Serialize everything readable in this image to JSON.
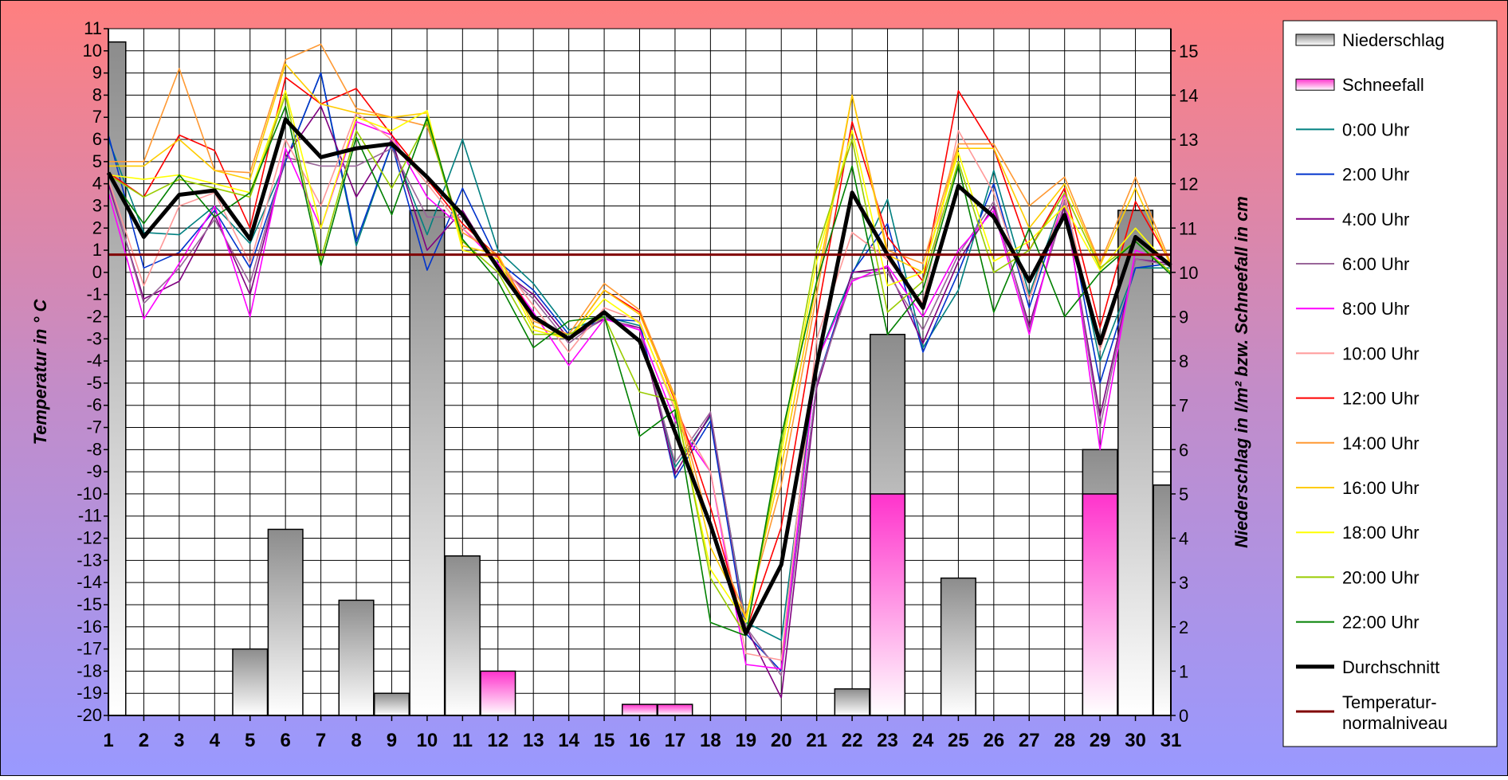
{
  "chart_data": {
    "type": "line",
    "x": [
      1,
      2,
      3,
      4,
      5,
      6,
      7,
      8,
      9,
      10,
      11,
      12,
      13,
      14,
      15,
      16,
      17,
      18,
      19,
      20,
      21,
      22,
      23,
      24,
      25,
      26,
      27,
      28,
      29,
      30,
      31
    ],
    "x_tick_labels": [
      "1",
      "2",
      "3",
      "4",
      "5",
      "6",
      "7",
      "8",
      "9",
      "10",
      "11",
      "12",
      "13",
      "14",
      "15",
      "16",
      "17",
      "18",
      "19",
      "20",
      "21",
      "22",
      "23",
      "24",
      "25",
      "26",
      "27",
      "28",
      "29",
      "30",
      "31"
    ],
    "ylabel": "Temperatur in ° C",
    "ylim": [
      -20,
      11
    ],
    "y_ticks": [
      11,
      10,
      9,
      8,
      7,
      6,
      5,
      4,
      3,
      2,
      1,
      0,
      -1,
      -2,
      -3,
      -4,
      -5,
      -6,
      -7,
      -8,
      -9,
      -10,
      -11,
      -12,
      -13,
      -14,
      -15,
      -16,
      -17,
      -18,
      -19,
      -20
    ],
    "y2label": "Niederschlag in l/m² bzw. Schneefall in cm",
    "y2lim": [
      0,
      15.5
    ],
    "y2_ticks": [
      15,
      14,
      13,
      12,
      11,
      10,
      9,
      8,
      7,
      6,
      5,
      4,
      3,
      2,
      1,
      0
    ],
    "grid": true,
    "legend_position": "right",
    "precipitation": {
      "name": "Niederschlag",
      "color": "#999999",
      "values": [
        15.2,
        0,
        0,
        0,
        1.5,
        4.2,
        0,
        2.6,
        0.5,
        11.4,
        3.6,
        0,
        0,
        0,
        0,
        0,
        0,
        0,
        0,
        0,
        0,
        0.6,
        8.6,
        0,
        3.1,
        0,
        0,
        0,
        6,
        11.4,
        5.2
      ]
    },
    "snowfall": {
      "name": "Schneefall",
      "color": "#ff33cc",
      "values": [
        0,
        0,
        0,
        0,
        0,
        0,
        0,
        0,
        0,
        0,
        0,
        1,
        0,
        0,
        0,
        0.25,
        0.25,
        0,
        0,
        0,
        0,
        0,
        5,
        0,
        0,
        0,
        0,
        0,
        5,
        0,
        0
      ]
    },
    "series": [
      {
        "name": "0:00 Uhr",
        "color": "#008080",
        "values": [
          6.0,
          1.8,
          1.7,
          3.0,
          1.3,
          5.0,
          9.0,
          1.2,
          5.8,
          1.7,
          6.0,
          1.0,
          -0.5,
          -2.6,
          -2.0,
          -2.4,
          -8.8,
          -6.5,
          -15.8,
          -16.6,
          -4.0,
          -0.1,
          3.3,
          -3.4,
          -0.8,
          4.6,
          -1.0,
          3.5,
          -4.0,
          0.2,
          0.2
        ]
      },
      {
        "name": "2:00 Uhr",
        "color": "#0033cc",
        "values": [
          6.2,
          0.2,
          0.9,
          2.8,
          0.2,
          5.0,
          9.0,
          1.4,
          5.8,
          0.1,
          3.8,
          0.5,
          -0.8,
          -2.8,
          -2.1,
          -2.2,
          -9.3,
          -6.7,
          -16.3,
          -18.0,
          -5.0,
          0.0,
          2.2,
          -3.6,
          0.0,
          4.0,
          -1.6,
          3.4,
          -5.0,
          0.2,
          0.4
        ]
      },
      {
        "name": "4:00 Uhr",
        "color": "#800080",
        "values": [
          4.0,
          -1.2,
          -0.4,
          2.6,
          -1.0,
          5.2,
          7.5,
          3.4,
          6.0,
          1.0,
          2.8,
          0.2,
          -1.0,
          -3.0,
          -2.1,
          -2.5,
          -9.1,
          -6.4,
          -16.0,
          -19.2,
          -5.2,
          0.0,
          0.2,
          -3.2,
          0.5,
          3.0,
          -2.4,
          3.0,
          -6.5,
          0.6,
          0.4
        ]
      },
      {
        "name": "6:00 Uhr",
        "color": "#996699",
        "values": [
          4.2,
          -1.4,
          0.2,
          2.4,
          -0.5,
          5.2,
          4.8,
          4.8,
          5.6,
          2.5,
          2.5,
          0.3,
          -1.2,
          -3.2,
          -2.0,
          -2.6,
          -8.6,
          -6.3,
          -16.0,
          -18.2,
          -5.0,
          -0.3,
          0.0,
          -2.6,
          0.8,
          3.2,
          -2.6,
          3.2,
          -7.0,
          0.6,
          0.3
        ]
      },
      {
        "name": "8:00 Uhr",
        "color": "#ff00ff",
        "values": [
          3.6,
          -2.1,
          0.4,
          3.0,
          -2.0,
          5.6,
          2.0,
          6.8,
          6.2,
          3.4,
          2.0,
          0.4,
          -1.8,
          -4.2,
          -2.1,
          -2.6,
          -6.7,
          -9.0,
          -17.7,
          -17.9,
          -4.0,
          -0.4,
          0.3,
          -2.0,
          1.0,
          2.8,
          -2.8,
          3.6,
          -8.0,
          1.0,
          0.4
        ]
      },
      {
        "name": "10:00 Uhr",
        "color": "#ff9999",
        "values": [
          4.2,
          -0.6,
          3.0,
          3.6,
          0.4,
          6.0,
          3.0,
          7.2,
          6.0,
          4.0,
          2.0,
          0.6,
          -1.5,
          -3.6,
          -1.6,
          -2.2,
          -6.2,
          -9.0,
          -17.2,
          -17.5,
          -3.0,
          1.8,
          0.6,
          -1.4,
          6.4,
          3.6,
          -1.2,
          3.4,
          -3.5,
          1.5,
          0.4
        ]
      },
      {
        "name": "12:00 Uhr",
        "color": "#ff0000",
        "values": [
          4.5,
          3.4,
          6.2,
          5.5,
          2.0,
          8.8,
          7.6,
          8.3,
          6.2,
          4.2,
          2.2,
          0.7,
          -2.0,
          -3.0,
          -0.8,
          -1.8,
          -5.8,
          -10.6,
          -16.2,
          -11.5,
          -2.0,
          6.8,
          1.6,
          -0.4,
          8.2,
          5.6,
          1.0,
          3.8,
          -2.5,
          3.2,
          0.4
        ]
      },
      {
        "name": "14:00 Uhr",
        "color": "#ff9933",
        "values": [
          5.0,
          5.0,
          9.2,
          4.6,
          4.5,
          9.6,
          10.3,
          7.4,
          7.0,
          6.6,
          1.8,
          0.8,
          -2.2,
          -2.8,
          -0.5,
          -1.7,
          -5.6,
          -11.6,
          -15.5,
          -9.6,
          -1.0,
          8.0,
          1.0,
          0.4,
          5.8,
          5.8,
          3.0,
          4.3,
          0.4,
          4.3,
          0.4
        ]
      },
      {
        "name": "16:00 Uhr",
        "color": "#ffcc00",
        "values": [
          4.8,
          4.8,
          6.0,
          4.6,
          4.2,
          9.4,
          7.6,
          7.2,
          7.0,
          7.2,
          1.2,
          0.8,
          -2.4,
          -3.0,
          -0.8,
          -1.9,
          -5.7,
          -12.4,
          -15.6,
          -8.8,
          -0.5,
          8.0,
          0.8,
          0.0,
          5.6,
          5.6,
          2.0,
          4.0,
          0.3,
          3.8,
          0.3
        ]
      },
      {
        "name": "18:00 Uhr",
        "color": "#ffff00",
        "values": [
          4.4,
          4.2,
          4.4,
          4.0,
          3.6,
          8.2,
          2.0,
          7.0,
          6.4,
          7.3,
          1.0,
          0.6,
          -2.6,
          -3.0,
          -1.2,
          -2.3,
          -6.0,
          -13.4,
          -15.8,
          -8.2,
          0.5,
          6.4,
          -0.6,
          0.0,
          5.4,
          0.5,
          1.4,
          3.0,
          0.1,
          2.0,
          0.2
        ]
      },
      {
        "name": "20:00 Uhr",
        "color": "#99cc00",
        "values": [
          4.4,
          3.4,
          4.2,
          3.8,
          3.4,
          8.0,
          0.6,
          6.4,
          3.8,
          6.8,
          1.4,
          0.0,
          -2.8,
          -2.8,
          -2.0,
          -5.4,
          -5.8,
          -13.8,
          -16.4,
          -7.8,
          1.0,
          6.0,
          -1.8,
          -0.4,
          5.0,
          0.0,
          1.0,
          3.6,
          0.2,
          1.4,
          0.0
        ]
      },
      {
        "name": "22:00 Uhr",
        "color": "#008000",
        "values": [
          4.4,
          2.2,
          4.4,
          2.5,
          3.6,
          7.5,
          0.3,
          6.1,
          2.6,
          7.0,
          1.5,
          -0.4,
          -3.4,
          -2.2,
          -2.0,
          -7.4,
          -6.2,
          -15.8,
          -16.4,
          -7.4,
          -0.4,
          4.8,
          -2.8,
          -0.8,
          4.8,
          -1.8,
          2.0,
          -2.0,
          0.0,
          1.4,
          -0.1
        ]
      },
      {
        "name": "Durchschnitt",
        "color": "#000000",
        "values": [
          4.5,
          1.6,
          3.5,
          3.7,
          1.5,
          6.9,
          5.2,
          5.6,
          5.8,
          4.3,
          2.6,
          0.2,
          -2.0,
          -3.0,
          -1.8,
          -3.1,
          -7.2,
          -11.4,
          -16.3,
          -13.2,
          -4.2,
          3.6,
          0.8,
          -1.6,
          3.9,
          2.5,
          -0.4,
          2.6,
          -3.2,
          1.6,
          0.3
        ]
      }
    ],
    "reference_line": {
      "name": "Temperatur-normalniveau",
      "name_lines": [
        "Temperatur-",
        "normalniveau"
      ],
      "value": 0.8,
      "color": "#800000"
    },
    "legend": [
      "Niederschlag",
      "Schneefall",
      "0:00 Uhr",
      "2:00 Uhr",
      "4:00 Uhr",
      "6:00 Uhr",
      "8:00 Uhr",
      "10:00 Uhr",
      "12:00 Uhr",
      "14:00 Uhr",
      "16:00 Uhr",
      "18:00 Uhr",
      "20:00 Uhr",
      "22:00 Uhr",
      "Durchschnitt",
      "Temperatur-normalniveau"
    ]
  }
}
